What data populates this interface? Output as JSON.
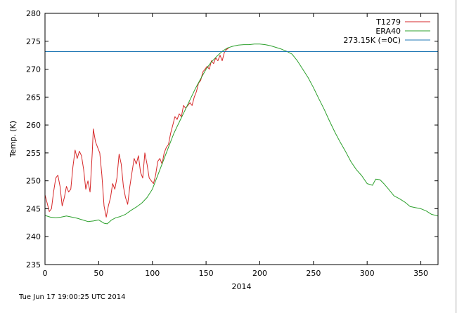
{
  "chart_data": {
    "type": "line",
    "xlabel": "2014",
    "ylabel": "Temp. (K)",
    "xlim": [
      0,
      366
    ],
    "ylim": [
      235,
      280
    ],
    "xticks": [
      0,
      50,
      100,
      150,
      200,
      250,
      300,
      350
    ],
    "yticks": [
      235,
      240,
      245,
      250,
      255,
      260,
      265,
      270,
      275,
      280
    ],
    "grid": false,
    "legend_position": "top-right",
    "series": [
      {
        "name": "T1279",
        "color": "#d62728",
        "points": [
          [
            0,
            247.5
          ],
          [
            2,
            246.0
          ],
          [
            4,
            244.5
          ],
          [
            6,
            245.0
          ],
          [
            8,
            248.0
          ],
          [
            10,
            250.5
          ],
          [
            12,
            251.0
          ],
          [
            14,
            249.0
          ],
          [
            16,
            245.5
          ],
          [
            18,
            247.0
          ],
          [
            20,
            249.0
          ],
          [
            22,
            248.0
          ],
          [
            24,
            248.5
          ],
          [
            26,
            252.5
          ],
          [
            28,
            255.5
          ],
          [
            30,
            254.0
          ],
          [
            32,
            255.3
          ],
          [
            34,
            254.5
          ],
          [
            36,
            252.0
          ],
          [
            38,
            248.5
          ],
          [
            40,
            250.0
          ],
          [
            42,
            248.0
          ],
          [
            44,
            255.0
          ],
          [
            45,
            259.3
          ],
          [
            47,
            257.0
          ],
          [
            49,
            256.0
          ],
          [
            51,
            255.0
          ],
          [
            53,
            251.0
          ],
          [
            55,
            245.5
          ],
          [
            57,
            243.5
          ],
          [
            59,
            245.5
          ],
          [
            61,
            247.0
          ],
          [
            63,
            249.5
          ],
          [
            65,
            248.5
          ],
          [
            67,
            250.5
          ],
          [
            69,
            254.8
          ],
          [
            71,
            253.0
          ],
          [
            73,
            249.0
          ],
          [
            75,
            247.0
          ],
          [
            77,
            245.8
          ],
          [
            79,
            249.0
          ],
          [
            81,
            251.5
          ],
          [
            83,
            254.0
          ],
          [
            85,
            253.0
          ],
          [
            87,
            254.5
          ],
          [
            89,
            251.5
          ],
          [
            91,
            250.5
          ],
          [
            93,
            255.0
          ],
          [
            95,
            253.0
          ],
          [
            97,
            250.5
          ],
          [
            99,
            250.0
          ],
          [
            101,
            249.5
          ],
          [
            103,
            251.0
          ],
          [
            105,
            253.5
          ],
          [
            107,
            254.0
          ],
          [
            109,
            253.0
          ],
          [
            111,
            255.0
          ],
          [
            113,
            256.0
          ],
          [
            115,
            256.5
          ],
          [
            117,
            258.5
          ],
          [
            119,
            260.0
          ],
          [
            121,
            261.5
          ],
          [
            123,
            261.0
          ],
          [
            125,
            262.0
          ],
          [
            127,
            261.5
          ],
          [
            129,
            263.5
          ],
          [
            131,
            263.0
          ],
          [
            133,
            263.5
          ],
          [
            135,
            264.0
          ],
          [
            137,
            263.5
          ],
          [
            139,
            265.0
          ],
          [
            141,
            266.0
          ],
          [
            143,
            267.5
          ],
          [
            145,
            268.0
          ],
          [
            147,
            269.5
          ],
          [
            149,
            270.0
          ],
          [
            151,
            270.5
          ],
          [
            153,
            270.0
          ],
          [
            155,
            271.5
          ],
          [
            157,
            271.0
          ],
          [
            159,
            272.0
          ],
          [
            161,
            271.5
          ],
          [
            163,
            272.5
          ],
          [
            165,
            271.5
          ],
          [
            167,
            273.0
          ],
          [
            169,
            273.5
          ],
          [
            171,
            273.8
          ]
        ]
      },
      {
        "name": "ERA40",
        "color": "#2ca02c",
        "points": [
          [
            0,
            243.8
          ],
          [
            5,
            243.5
          ],
          [
            10,
            243.4
          ],
          [
            15,
            243.5
          ],
          [
            20,
            243.7
          ],
          [
            25,
            243.5
          ],
          [
            30,
            243.3
          ],
          [
            35,
            243.0
          ],
          [
            40,
            242.7
          ],
          [
            45,
            242.8
          ],
          [
            50,
            243.0
          ],
          [
            55,
            242.4
          ],
          [
            58,
            242.3
          ],
          [
            62,
            243.0
          ],
          [
            66,
            243.4
          ],
          [
            70,
            243.6
          ],
          [
            75,
            244.0
          ],
          [
            80,
            244.7
          ],
          [
            85,
            245.3
          ],
          [
            90,
            246.0
          ],
          [
            95,
            247.0
          ],
          [
            100,
            248.5
          ],
          [
            105,
            251.0
          ],
          [
            110,
            253.5
          ],
          [
            115,
            256.0
          ],
          [
            120,
            258.5
          ],
          [
            125,
            260.5
          ],
          [
            130,
            262.5
          ],
          [
            135,
            264.5
          ],
          [
            140,
            266.5
          ],
          [
            145,
            268.3
          ],
          [
            150,
            270.0
          ],
          [
            155,
            271.3
          ],
          [
            160,
            272.3
          ],
          [
            165,
            273.2
          ],
          [
            170,
            273.8
          ],
          [
            175,
            274.1
          ],
          [
            180,
            274.3
          ],
          [
            185,
            274.4
          ],
          [
            190,
            274.4
          ],
          [
            195,
            274.5
          ],
          [
            200,
            274.5
          ],
          [
            205,
            274.4
          ],
          [
            210,
            274.2
          ],
          [
            215,
            273.9
          ],
          [
            220,
            273.6
          ],
          [
            225,
            273.2
          ],
          [
            230,
            272.7
          ],
          [
            235,
            271.5
          ],
          [
            240,
            270.0
          ],
          [
            245,
            268.5
          ],
          [
            250,
            266.7
          ],
          [
            255,
            264.7
          ],
          [
            260,
            262.8
          ],
          [
            265,
            260.7
          ],
          [
            270,
            258.7
          ],
          [
            275,
            256.9
          ],
          [
            280,
            255.2
          ],
          [
            285,
            253.4
          ],
          [
            290,
            252.0
          ],
          [
            295,
            250.9
          ],
          [
            300,
            249.5
          ],
          [
            305,
            249.2
          ],
          [
            308,
            250.3
          ],
          [
            312,
            250.2
          ],
          [
            316,
            249.4
          ],
          [
            320,
            248.5
          ],
          [
            325,
            247.3
          ],
          [
            330,
            246.8
          ],
          [
            335,
            246.2
          ],
          [
            340,
            245.4
          ],
          [
            345,
            245.2
          ],
          [
            350,
            245.0
          ],
          [
            355,
            244.6
          ],
          [
            360,
            244.0
          ],
          [
            366,
            243.7
          ]
        ]
      },
      {
        "name": "273.15K (=0C)",
        "color": "#1f77b4",
        "points": [
          [
            0,
            273.15
          ],
          [
            366,
            273.15
          ]
        ]
      }
    ]
  },
  "footer": {
    "timestamp": "Tue Jun 17 19:00:25 UTC 2014"
  }
}
